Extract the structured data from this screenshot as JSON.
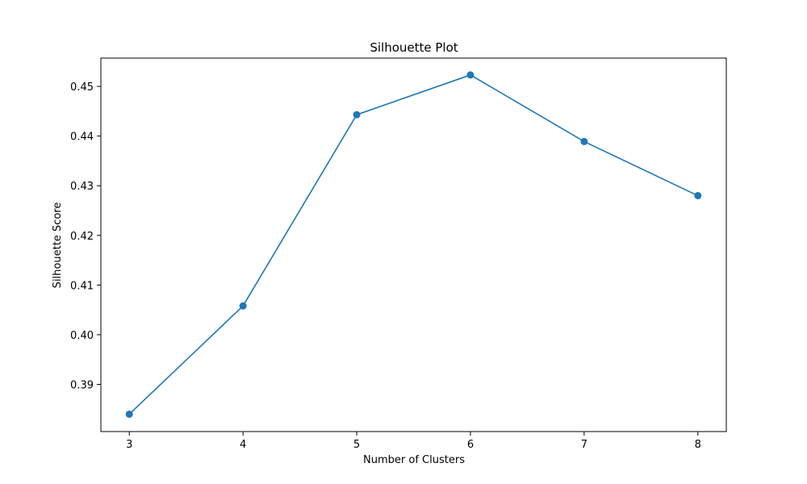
{
  "chart_data": {
    "type": "line",
    "title": "Silhouette Plot",
    "xlabel": "Number of Clusters",
    "ylabel": "Silhouette Score",
    "x": [
      3,
      4,
      5,
      6,
      7,
      8
    ],
    "series": [
      {
        "values": [
          0.384,
          0.4058,
          0.4443,
          0.4523,
          0.4389,
          0.428
        ]
      }
    ],
    "xlim": [
      2.75,
      8.25
    ],
    "ylim": [
      0.3805,
      0.4557
    ],
    "xticks": [
      "3",
      "4",
      "5",
      "6",
      "7",
      "8"
    ],
    "yticks": [
      "0.39",
      "0.40",
      "0.41",
      "0.42",
      "0.43",
      "0.44",
      "0.45"
    ],
    "grid": false,
    "marker": "circle",
    "line_color": "#1f77b4"
  }
}
